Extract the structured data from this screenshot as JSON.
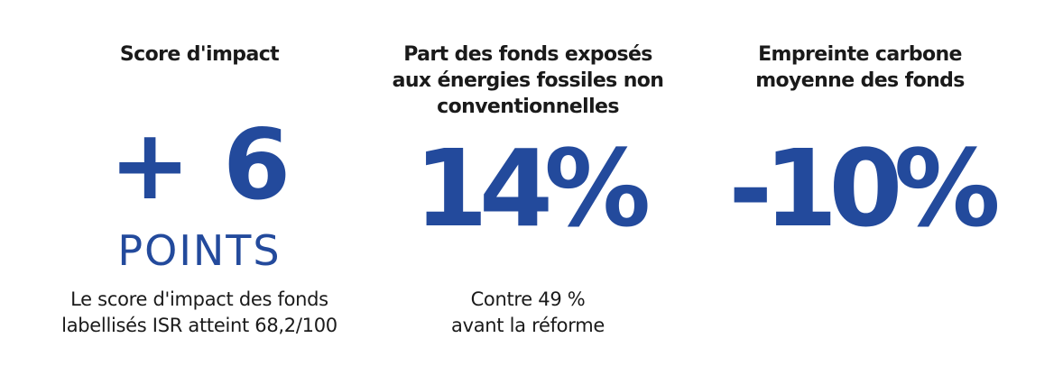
{
  "stats": [
    {
      "heading": [
        "Score d'impact"
      ],
      "value": "+ 6",
      "unit": "POINTS",
      "description": [
        "Le score d'impact des fonds",
        "labellisés ISR atteint 68,2/100"
      ]
    },
    {
      "heading": [
        "Part des fonds exposés",
        "aux énergies fossiles non",
        "conventionnelles"
      ],
      "value": "14%",
      "description": [
        "Contre 49 %",
        "avant la réforme"
      ]
    },
    {
      "heading": [
        "Empreinte carbone",
        "moyenne des fonds"
      ],
      "value": "-10%"
    }
  ],
  "colors": {
    "accent": "#234a9c",
    "text": "#1a1a1a"
  }
}
